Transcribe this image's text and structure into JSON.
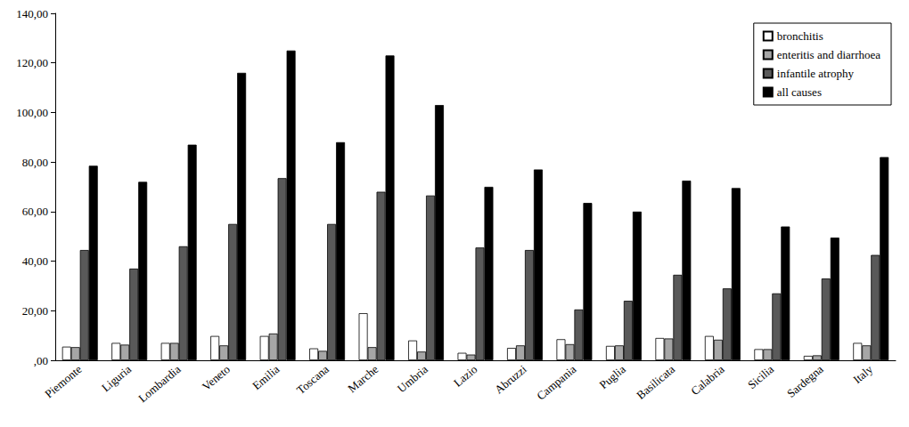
{
  "chart_data": {
    "type": "bar",
    "categories": [
      "Piemonte",
      "Liguria",
      "Lombardia",
      "Veneto",
      "Emilia",
      "Toscana",
      "Marche",
      "Umbria",
      "Lazio",
      "Abruzzi",
      "Campania",
      "Puglia",
      "Basilicata",
      "Calabria",
      "Sicilia",
      "Sardegna",
      "Italy"
    ],
    "series": [
      {
        "name": "bronchitis",
        "color": "#ffffff",
        "values": [
          5.5,
          7,
          7,
          9.8,
          9.8,
          4.8,
          19,
          8,
          3,
          5,
          8.5,
          5.8,
          9,
          9.8,
          4.5,
          1.8,
          7
        ]
      },
      {
        "name": "enteritis and diarrhoea",
        "color": "#a6a6a6",
        "values": [
          5.3,
          6.3,
          7,
          6,
          10.8,
          3.8,
          5.3,
          3.5,
          2.3,
          6,
          6.5,
          6,
          8.8,
          8.3,
          4.5,
          2,
          6
        ]
      },
      {
        "name": "infantile atrophy",
        "color": "#595959",
        "values": [
          44.5,
          37,
          46,
          55,
          73.5,
          55,
          68,
          66.5,
          45.5,
          44.5,
          20.5,
          24,
          34.5,
          29,
          27,
          33,
          42.5
        ]
      },
      {
        "name": "all causes",
        "color": "#000000",
        "values": [
          78.5,
          72,
          87,
          116,
          125,
          88,
          123,
          103,
          70,
          77,
          63.5,
          60,
          72.5,
          69.5,
          54,
          49.5,
          82
        ]
      }
    ],
    "ylim": [
      0,
      140
    ],
    "yticks": [
      {
        "value": 0,
        "label": ",00"
      },
      {
        "value": 20,
        "label": "20,00"
      },
      {
        "value": 40,
        "label": "40,00"
      },
      {
        "value": 60,
        "label": "60,00"
      },
      {
        "value": 80,
        "label": "80,00"
      },
      {
        "value": 100,
        "label": "100,00"
      },
      {
        "value": 120,
        "label": "120,00"
      },
      {
        "value": 140,
        "label": "140,00"
      }
    ],
    "grid": false,
    "legend": "upper right"
  }
}
